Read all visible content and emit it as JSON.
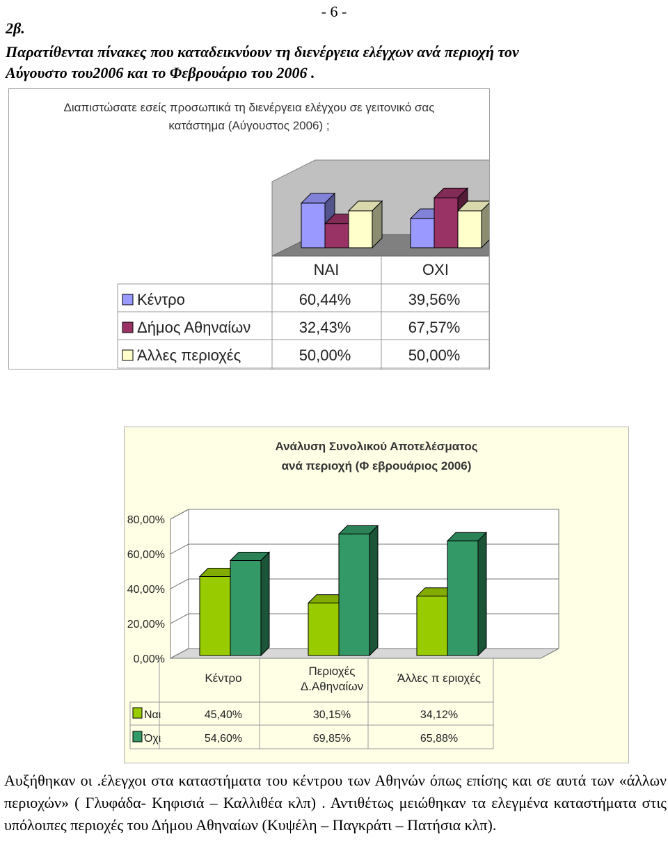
{
  "page": {
    "page_number": "- 6 -",
    "section_label": "2β.",
    "intro_line_1": "Παρατίθενται πίνακες που καταδεικνύουν τη διενέργεια ελέγχων ανά περιοχή τον",
    "intro_line_2": "Αύγουστο του2006 και το Φεβρουάριο  του 2006 .",
    "conclusion": "Αυξήθηκαν οι .έλεγχοι στα καταστήματα του κέντρου των Αθηνών όπως επίσης και σε αυτά των «άλλων περιοχών» ( Γλυφάδα- Κηφισιά – Καλλιθέα κλπ) . Αντιθέτως μειώθηκαν τα ελεγμένα καταστήματα στις υπόλοιπες περιοχές του Δήμου Αθηναίων (Κυψέλη – Παγκράτι – Πατήσια κλπ)."
  },
  "chart_data": [
    {
      "type": "bar",
      "title_line_1": "Διαπιστώσατε εσείς προσωπικά τη διενέργεια ελέγχου σε γειτονικό σας",
      "title_line_2": "κατάστημα (Αύγουστος 2006) ;",
      "categories": [
        "ΝΑΙ",
        "ΟΧΙ"
      ],
      "series": [
        {
          "name": "Κέντρο",
          "values": [
            60.44,
            39.56
          ],
          "labels": [
            "60,44%",
            "39,56%"
          ],
          "color": "#9999ff"
        },
        {
          "name": "Δήμος Αθηναίων",
          "values": [
            32.43,
            67.57
          ],
          "labels": [
            "32,43%",
            "67,57%"
          ],
          "color": "#993366"
        },
        {
          "name": "Άλλες περιοχές",
          "values": [
            50.0,
            50.0
          ],
          "labels": [
            "50,00%",
            "50,00%"
          ],
          "color": "#ffffcc"
        }
      ],
      "ylim": [
        0,
        100
      ],
      "data_table": true,
      "grid": false
    },
    {
      "type": "bar",
      "title_line_1": "Ανάλυση Συνολικού Αποτελέσματος",
      "title_line_2": "ανά περιοχή (Φ εβρουάριος 2006)",
      "categories": [
        "Κέντρο",
        "Περιοχές Δ.Αθηναίων",
        "Άλλες π εριοχές"
      ],
      "category_lines": [
        [
          "Κέντρο"
        ],
        [
          "Περιοχές",
          "Δ.Αθηναίων"
        ],
        [
          "Άλλες π εριοχές"
        ]
      ],
      "series": [
        {
          "name": "Ναι",
          "values": [
            45.4,
            30.15,
            34.12
          ],
          "labels": [
            "45,40%",
            "30,15%",
            "34,12%"
          ],
          "color": "#99cc00"
        },
        {
          "name": "Όχι",
          "values": [
            54.6,
            69.85,
            65.88
          ],
          "labels": [
            "54,60%",
            "69,85%",
            "65,88%"
          ],
          "color": "#339966"
        }
      ],
      "yticks": [
        "0,00%",
        "20,00%",
        "40,00%",
        "60,00%",
        "80,00%"
      ],
      "ylim": [
        0,
        80
      ],
      "data_table": true,
      "grid": true
    }
  ]
}
